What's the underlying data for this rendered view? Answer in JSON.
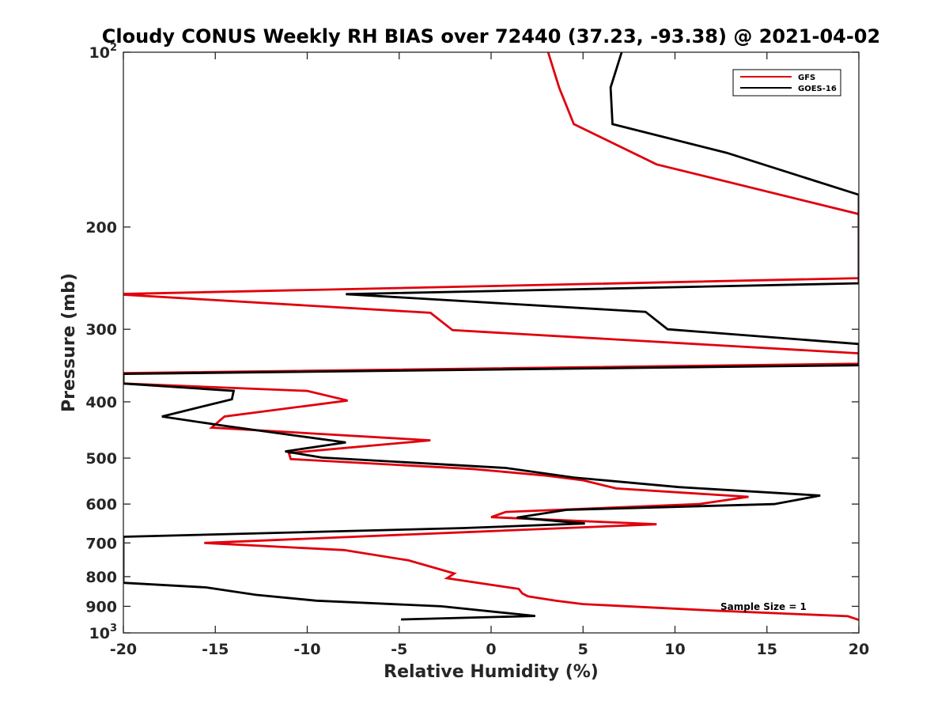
{
  "chart_data": {
    "type": "line",
    "title": "Cloudy CONUS Weekly RH BIAS over 72440 (37.23, -93.38) @ 2021-04-02",
    "xlabel": "Relative Humidity (%)",
    "ylabel": "Pressure (mb)",
    "xlim": [
      -20,
      20
    ],
    "ylim": [
      100,
      1000
    ],
    "y_scale": "log",
    "y_reversed": true,
    "grid": false,
    "legend_position": "top-right",
    "x_ticks": [
      -20,
      -15,
      -10,
      -5,
      0,
      5,
      10,
      15,
      20
    ],
    "x_tick_labels": [
      "-20",
      "-15",
      "-10",
      "-5",
      "0",
      "5",
      "10",
      "15",
      "20"
    ],
    "y_ticks": [
      100,
      200,
      300,
      400,
      500,
      600,
      700,
      800,
      900,
      1000
    ],
    "y_tick_labels": [
      {
        "base": "10",
        "exp": "2"
      },
      {
        "base": "200"
      },
      {
        "base": "300"
      },
      {
        "base": "400"
      },
      {
        "base": "500"
      },
      {
        "base": "600"
      },
      {
        "base": "700"
      },
      {
        "base": "800"
      },
      {
        "base": "900"
      },
      {
        "base": "10",
        "exp": "3"
      }
    ],
    "series": [
      {
        "name": "GFS",
        "color": "#e0000d",
        "points": [
          [
            3.1,
            100
          ],
          [
            3.7,
            115
          ],
          [
            4.5,
            133
          ],
          [
            9.0,
            156
          ],
          [
            20.0,
            190
          ],
          [
            20.0,
            245
          ],
          [
            -20.5,
            261
          ],
          [
            -3.3,
            281
          ],
          [
            -2.1,
            301
          ],
          [
            20.0,
            330
          ],
          [
            20.0,
            344
          ],
          [
            -20.0,
            357
          ],
          [
            -20.0,
            372
          ],
          [
            -10.0,
            383
          ],
          [
            -7.8,
            398
          ],
          [
            -14.5,
            424
          ],
          [
            -15.2,
            443
          ],
          [
            -3.3,
            466
          ],
          [
            -11.0,
            490
          ],
          [
            -10.9,
            502
          ],
          [
            -1.0,
            522
          ],
          [
            3.0,
            536
          ],
          [
            5.0,
            546
          ],
          [
            6.8,
            564
          ],
          [
            14.0,
            583
          ],
          [
            11.3,
            600
          ],
          [
            0.8,
            619
          ],
          [
            0.0,
            632
          ],
          [
            9.0,
            650
          ],
          [
            -1.0,
            670
          ],
          [
            -15.6,
            700
          ],
          [
            -8.0,
            720
          ],
          [
            -4.5,
            750
          ],
          [
            -2.0,
            790
          ],
          [
            -2.4,
            805
          ],
          [
            -0.5,
            822
          ],
          [
            1.5,
            840
          ],
          [
            1.7,
            855
          ],
          [
            2.0,
            865
          ],
          [
            3.5,
            880
          ],
          [
            5.0,
            892
          ],
          [
            12.0,
            915
          ],
          [
            19.4,
            936
          ],
          [
            20.0,
            950
          ]
        ]
      },
      {
        "name": "GOES-16",
        "color": "#000000",
        "points": [
          [
            7.1,
            100
          ],
          [
            6.5,
            115
          ],
          [
            6.6,
            133
          ],
          [
            12.8,
            149
          ],
          [
            20.0,
            176
          ],
          [
            20.0,
            250
          ],
          [
            -7.9,
            261
          ],
          [
            8.4,
            280
          ],
          [
            9.6,
            300
          ],
          [
            20.0,
            318
          ],
          [
            20.0,
            346
          ],
          [
            -20.0,
            358
          ],
          [
            -20.0,
            372
          ],
          [
            -14.0,
            383
          ],
          [
            -14.1,
            396
          ],
          [
            -17.9,
            424
          ],
          [
            -14.5,
            440
          ],
          [
            -7.9,
            470
          ],
          [
            -11.2,
            487
          ],
          [
            -9.2,
            499
          ],
          [
            0.8,
            520
          ],
          [
            4.5,
            540
          ],
          [
            10.2,
            561
          ],
          [
            17.9,
            580
          ],
          [
            15.4,
            600
          ],
          [
            4.1,
            614
          ],
          [
            1.4,
            633
          ],
          [
            5.1,
            648
          ],
          [
            -1.5,
            660
          ],
          [
            -20.0,
            683
          ],
          [
            -20.0,
            820
          ],
          [
            -15.5,
            835
          ],
          [
            -12.8,
            860
          ],
          [
            -9.5,
            880
          ],
          [
            -2.7,
            900
          ],
          [
            0.8,
            924
          ],
          [
            2.4,
            935
          ],
          [
            -4.9,
            948
          ]
        ]
      }
    ],
    "annotation": "Sample Size = 1"
  }
}
